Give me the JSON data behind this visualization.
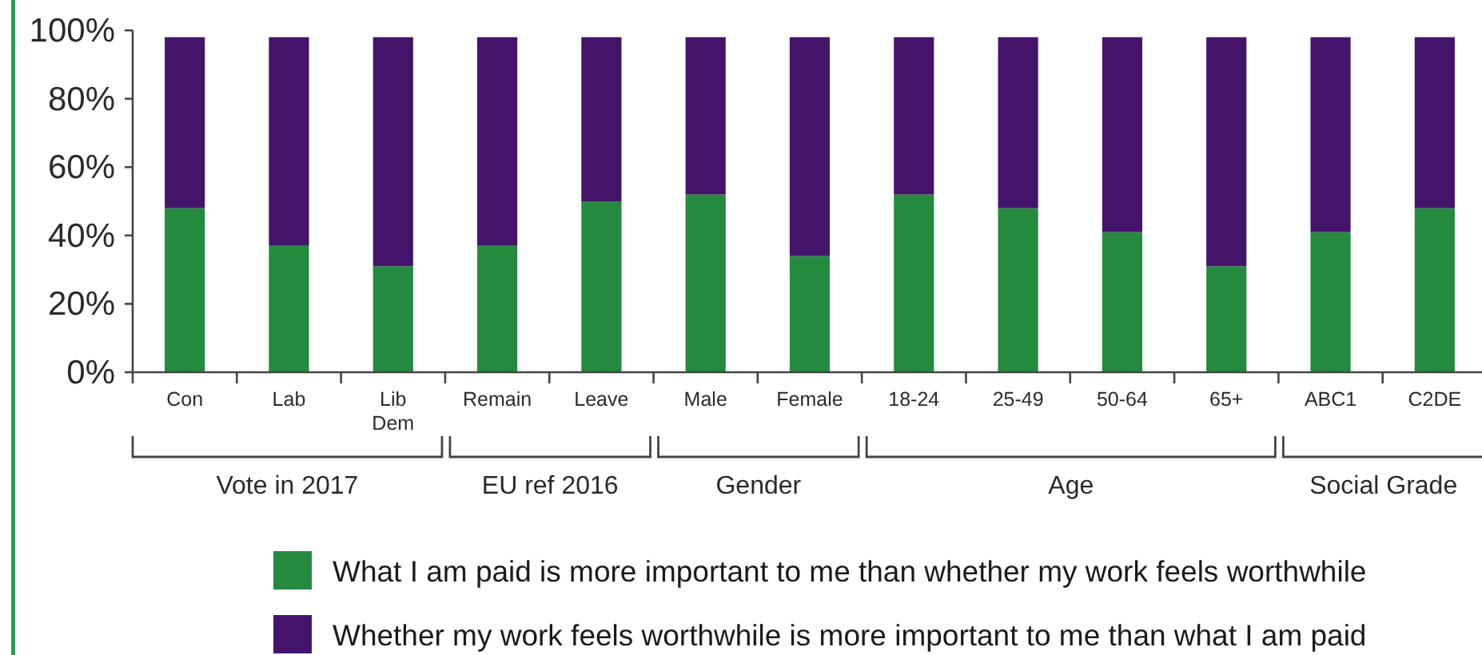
{
  "chart_data": {
    "type": "bar",
    "stacked": true,
    "categories": [
      "Con",
      "Lab",
      "Lib Dem",
      "Remain",
      "Leave",
      "Male",
      "Female",
      "18-24",
      "25-49",
      "50-64",
      "65+",
      "ABC1",
      "C2DE"
    ],
    "series": [
      {
        "name": "What I am paid is more important to me than whether my work feels worthwhile",
        "color": "#248a3d",
        "values": [
          48,
          37,
          31,
          37,
          50,
          52,
          34,
          52,
          48,
          41,
          31,
          41,
          48
        ]
      },
      {
        "name": "Whether my work feels worthwhile is more important to me than what I am paid",
        "color": "#44146a",
        "values": [
          50,
          61,
          67,
          61,
          48,
          46,
          64,
          46,
          50,
          57,
          67,
          57,
          50
        ]
      }
    ],
    "ylim": [
      0,
      100
    ],
    "yticks": [
      {
        "value": 0,
        "label": "0%"
      },
      {
        "value": 20,
        "label": "20%"
      },
      {
        "value": 40,
        "label": "40%"
      },
      {
        "value": 60,
        "label": "60%"
      },
      {
        "value": 80,
        "label": "80%"
      },
      {
        "value": 100,
        "label": "100%"
      }
    ],
    "legend": "bottom",
    "annotations": [
      "Vote in 2017",
      "EU ref 2016",
      "Gender",
      "Age",
      "Social Grade"
    ]
  }
}
